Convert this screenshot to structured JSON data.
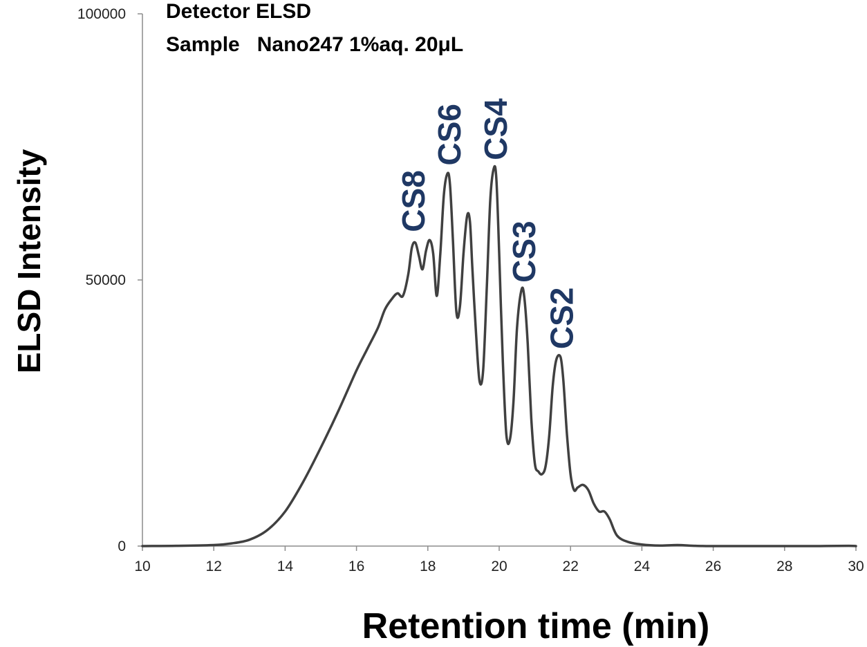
{
  "annotations": {
    "line1": "Detector ELSD",
    "line2": "Sample   Nano247 1%aq. 20μL"
  },
  "chart_data": {
    "type": "line",
    "xlabel": "Retention time (min)",
    "ylabel": "ELSD Intensity",
    "xlim": [
      10,
      30
    ],
    "ylim": [
      0,
      100000
    ],
    "xticks": [
      "10",
      "12",
      "14",
      "16",
      "18",
      "20",
      "22",
      "24",
      "26",
      "28",
      "30"
    ],
    "yticks": [
      "0",
      "50000",
      "100000"
    ],
    "grid": false,
    "line_color": "#404040",
    "label_color": "#1f3864",
    "series": [
      {
        "x": [
          10,
          11,
          12,
          12.5,
          13,
          13.5,
          14,
          14.5,
          15,
          15.5,
          16,
          16.3,
          16.6,
          16.8,
          17.0,
          17.15,
          17.3,
          17.45,
          17.55,
          17.65,
          17.75,
          17.85,
          17.95,
          18.05,
          18.15,
          18.25,
          18.35,
          18.45,
          18.55,
          18.62,
          18.7,
          18.8,
          18.9,
          19.0,
          19.1,
          19.18,
          19.25,
          19.35,
          19.45,
          19.55,
          19.65,
          19.75,
          19.85,
          19.92,
          20.0,
          20.1,
          20.2,
          20.3,
          20.4,
          20.5,
          20.62,
          20.7,
          20.8,
          20.9,
          21.0,
          21.1,
          21.2,
          21.3,
          21.4,
          21.5,
          21.6,
          21.72,
          21.8,
          21.9,
          22.0,
          22.1,
          22.2,
          22.35,
          22.5,
          22.65,
          22.8,
          22.95,
          23.1,
          23.3,
          23.6,
          24,
          24.5,
          25,
          25.5,
          26,
          27,
          28,
          29,
          29.8,
          30
        ],
        "y": [
          0,
          50,
          200,
          500,
          1200,
          3000,
          6500,
          12000,
          18500,
          25500,
          33000,
          37000,
          41000,
          44500,
          46500,
          47500,
          47000,
          51000,
          56000,
          57000,
          54500,
          52000,
          55500,
          57500,
          55000,
          47000,
          55000,
          66000,
          70000,
          68000,
          58000,
          44000,
          45000,
          55000,
          62000,
          61000,
          52000,
          40000,
          31000,
          33000,
          48000,
          65000,
          71000,
          69000,
          55000,
          35000,
          21000,
          20000,
          27000,
          41000,
          48000,
          47000,
          38000,
          24000,
          15500,
          14000,
          13500,
          15000,
          20500,
          30000,
          35000,
          35500,
          31000,
          21000,
          13500,
          10500,
          11000,
          11500,
          10500,
          8000,
          6500,
          6500,
          5000,
          2000,
          800,
          300,
          100,
          200,
          50,
          0,
          0,
          0,
          0,
          50,
          0
        ]
      }
    ],
    "peak_labels": [
      {
        "text": "CS8",
        "x": 17.6,
        "y": 59000
      },
      {
        "text": "CS6",
        "x": 18.6,
        "y": 71500
      },
      {
        "text": "CS4",
        "x": 19.9,
        "y": 72500
      },
      {
        "text": "CS3",
        "x": 20.7,
        "y": 49500
      },
      {
        "text": "CS2",
        "x": 21.75,
        "y": 37000
      }
    ]
  }
}
